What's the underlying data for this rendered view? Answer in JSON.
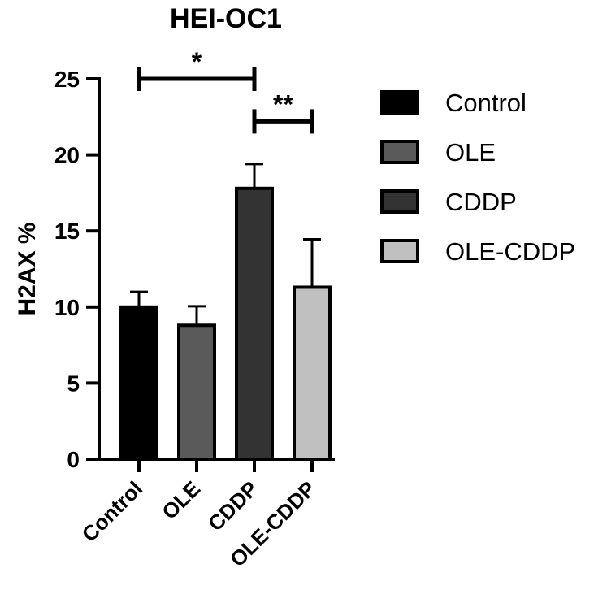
{
  "chart_data": {
    "type": "bar",
    "title": "HEI-OC1",
    "xlabel": "",
    "ylabel": "H2AX %",
    "ylim": [
      0,
      25
    ],
    "yticks": [
      0,
      5,
      10,
      15,
      20,
      25
    ],
    "categories": [
      "Control",
      "OLE",
      "CDDP",
      "OLE-CDDP"
    ],
    "values": [
      10.0,
      8.8,
      17.8,
      11.3
    ],
    "errors": [
      1.0,
      1.25,
      1.6,
      3.15
    ],
    "colors": [
      "#000000",
      "#5a5a5a",
      "#333333",
      "#c0c0c0"
    ],
    "legend": {
      "position": "right",
      "entries": [
        "Control",
        "OLE",
        "CDDP",
        "OLE-CDDP"
      ]
    },
    "significance": [
      {
        "from": "Control",
        "to": "CDDP",
        "label": "*",
        "y": 25.0
      },
      {
        "from": "CDDP",
        "to": "OLE-CDDP",
        "label": "**",
        "y": 22.2
      }
    ]
  }
}
